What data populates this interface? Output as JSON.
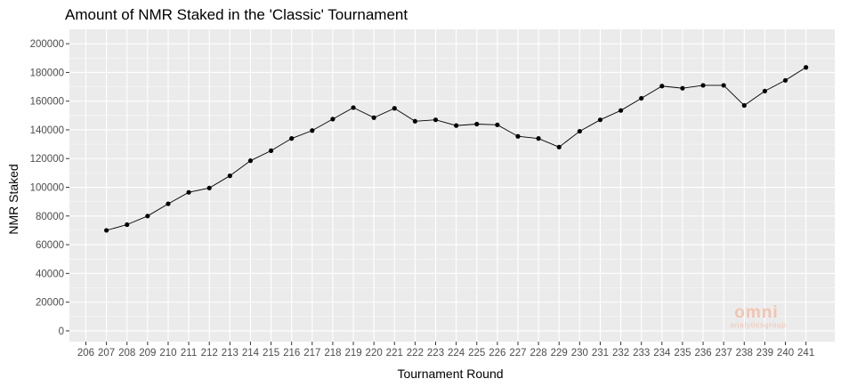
{
  "chart_data": {
    "type": "line",
    "title": "Amount of NMR Staked in the 'Classic' Tournament",
    "xlabel": "Tournament Round",
    "ylabel": "NMR Staked",
    "x_ticks": [
      206,
      207,
      208,
      209,
      210,
      211,
      212,
      213,
      214,
      215,
      216,
      217,
      218,
      219,
      220,
      221,
      222,
      223,
      224,
      225,
      226,
      227,
      228,
      229,
      230,
      231,
      232,
      233,
      234,
      235,
      236,
      237,
      238,
      239,
      240,
      241
    ],
    "y_ticks": [
      0,
      20000,
      40000,
      60000,
      80000,
      100000,
      120000,
      140000,
      160000,
      180000,
      200000
    ],
    "xlim": [
      205.2,
      242.4
    ],
    "ylim": [
      -7500,
      210000
    ],
    "grid": true,
    "series": [
      {
        "x": [
          207,
          208,
          209,
          210,
          211,
          212,
          213,
          214,
          215,
          216,
          217,
          218,
          219,
          220,
          221,
          222,
          223,
          224,
          225,
          226,
          227,
          228,
          229,
          230,
          231,
          232,
          233,
          234,
          235,
          236,
          237,
          238,
          239,
          240,
          241
        ],
        "values": [
          70000,
          74000,
          80000,
          88500,
          96500,
          99500,
          108000,
          118500,
          125500,
          134000,
          139500,
          147500,
          155500,
          148500,
          155000,
          146000,
          147000,
          143000,
          144000,
          143500,
          135500,
          134000,
          128000,
          139000,
          147000,
          153500,
          162000,
          170500,
          169000,
          171000,
          171000,
          157000,
          167000,
          174500,
          183500
        ]
      }
    ],
    "watermark": {
      "logo": "omni",
      "subtitle": "analyticsgroup"
    }
  }
}
